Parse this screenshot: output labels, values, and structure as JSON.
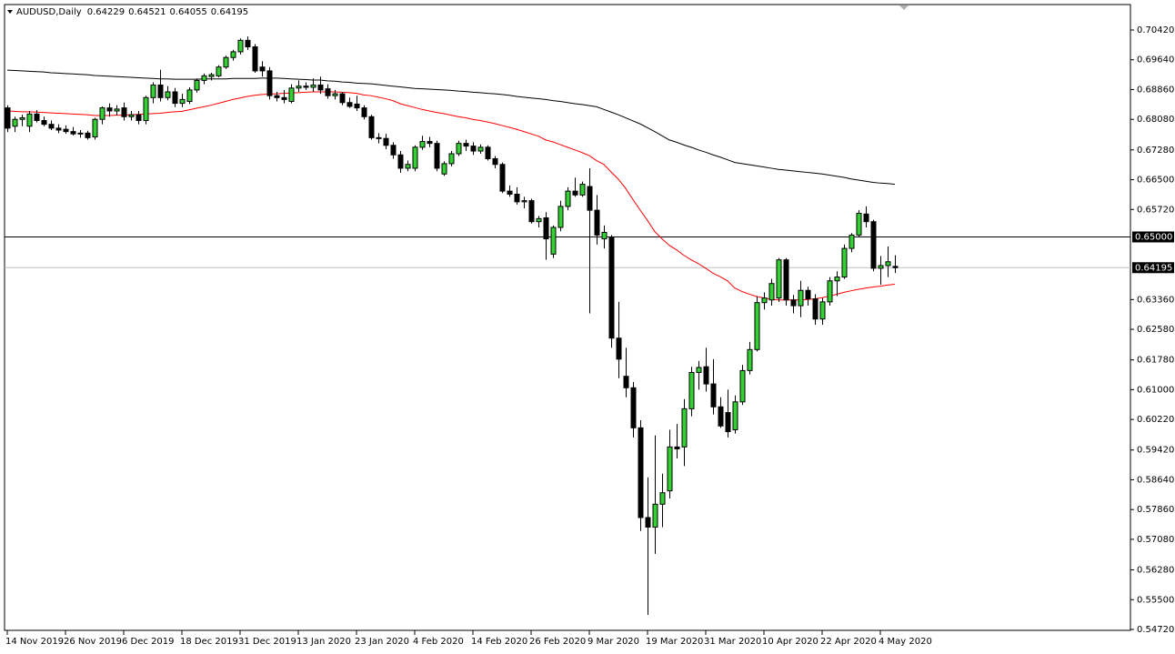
{
  "chart_data": {
    "type": "candlestick",
    "title": "AUDUSD,Daily",
    "categories": [
      "14 Nov 2019",
      null,
      null,
      null,
      null,
      null,
      null,
      null,
      "26 Nov 2019",
      null,
      null,
      null,
      null,
      null,
      null,
      null,
      "6 Dec 2019",
      null,
      null,
      null,
      null,
      null,
      null,
      null,
      "18 Dec 2019",
      null,
      null,
      null,
      null,
      null,
      null,
      null,
      "31 Dec 2019",
      null,
      null,
      null,
      null,
      null,
      null,
      null,
      "13 Jan 2020",
      null,
      null,
      null,
      null,
      null,
      null,
      null,
      "23 Jan 2020",
      null,
      null,
      null,
      null,
      null,
      null,
      null,
      "4 Feb 2020",
      null,
      null,
      null,
      null,
      null,
      null,
      null,
      "14 Feb 2020",
      null,
      null,
      null,
      null,
      null,
      null,
      null,
      "26 Feb 2020",
      null,
      null,
      null,
      null,
      null,
      null,
      null,
      "9 Mar 2020",
      null,
      null,
      null,
      null,
      null,
      null,
      null,
      "19 Mar 2020",
      null,
      null,
      null,
      null,
      null,
      null,
      null,
      "31 Mar 2020",
      null,
      null,
      null,
      null,
      null,
      null,
      null,
      "10 Apr 2020",
      null,
      null,
      null,
      null,
      null,
      null,
      null,
      "22 Apr 2020",
      null,
      null,
      null,
      null,
      null,
      null,
      null,
      "4 May 2020",
      null,
      null
    ],
    "open": [
      0.6838,
      0.679,
      0.6808,
      0.679,
      0.6822,
      0.6805,
      0.6795,
      0.6785,
      0.6782,
      0.6776,
      0.677,
      0.6772,
      0.6762,
      0.6808,
      0.6838,
      0.683,
      0.6838,
      0.6815,
      0.682,
      0.6805,
      0.6865,
      0.6898,
      0.6865,
      0.688,
      0.685,
      0.6855,
      0.6885,
      0.691,
      0.692,
      0.6922,
      0.6945,
      0.697,
      0.6985,
      0.7015,
      0.6998,
      0.6945,
      0.6935,
      0.687,
      0.6865,
      0.6855,
      0.689,
      0.6895,
      0.6892,
      0.6898,
      0.6888,
      0.687,
      0.6875,
      0.6852,
      0.6848,
      0.6838,
      0.6815,
      0.676,
      0.6758,
      0.674,
      0.6715,
      0.668,
      0.668,
      0.6735,
      0.675,
      0.6745,
      0.6665,
      0.6692,
      0.6718,
      0.6745,
      0.6738,
      0.6725,
      0.6735,
      0.6705,
      0.669,
      0.662,
      0.6612,
      0.6592,
      0.6595,
      0.654,
      0.655,
      0.6455,
      0.6525,
      0.658,
      0.662,
      0.661,
      0.6632,
      0.657,
      0.6495,
      0.65,
      0.6235,
      0.6135,
      0.6105,
      0.6,
      0.5765,
      0.574,
      0.58,
      0.5835,
      0.595,
      0.595,
      0.605,
      0.6145,
      0.616,
      0.6115,
      0.6055,
      0.604,
      0.5995,
      0.6068,
      0.615,
      0.6205,
      0.6328,
      0.6335,
      0.634,
      0.644,
      0.6335,
      0.632,
      0.636,
      0.6338,
      0.6285,
      0.633,
      0.6385,
      0.6395,
      0.647,
      0.6505,
      0.656,
      0.654,
      0.6418,
      0.6425,
      0.64229
    ],
    "high": [
      0.6845,
      0.6815,
      0.682,
      0.683,
      0.6832,
      0.6815,
      0.6805,
      0.6795,
      0.6792,
      0.6788,
      0.678,
      0.6778,
      0.6812,
      0.6842,
      0.685,
      0.6845,
      0.6852,
      0.683,
      0.683,
      0.687,
      0.6905,
      0.6938,
      0.6895,
      0.689,
      0.6875,
      0.6892,
      0.6915,
      0.6928,
      0.693,
      0.695,
      0.6975,
      0.699,
      0.702,
      0.7025,
      0.7005,
      0.696,
      0.6945,
      0.688,
      0.6885,
      0.69,
      0.691,
      0.6905,
      0.6915,
      0.692,
      0.69,
      0.6885,
      0.688,
      0.6865,
      0.687,
      0.6845,
      0.682,
      0.6772,
      0.677,
      0.6748,
      0.6725,
      0.67,
      0.674,
      0.6765,
      0.6762,
      0.6752,
      0.6698,
      0.6725,
      0.6752,
      0.6755,
      0.6748,
      0.6742,
      0.674,
      0.6712,
      0.6695,
      0.6635,
      0.663,
      0.6605,
      0.66,
      0.6555,
      0.6565,
      0.653,
      0.6595,
      0.663,
      0.6655,
      0.6645,
      0.668,
      0.661,
      0.653,
      0.6505,
      0.633,
      0.621,
      0.612,
      0.602,
      0.587,
      0.598,
      0.588,
      0.5995,
      0.601,
      0.6075,
      0.616,
      0.6175,
      0.621,
      0.618,
      0.608,
      0.61,
      0.6085,
      0.6165,
      0.6225,
      0.6345,
      0.6355,
      0.639,
      0.6445,
      0.6445,
      0.6348,
      0.6385,
      0.637,
      0.635,
      0.634,
      0.6395,
      0.641,
      0.648,
      0.651,
      0.657,
      0.658,
      0.6545,
      0.645,
      0.6475,
      0.64521
    ],
    "low": [
      0.6775,
      0.6775,
      0.679,
      0.6775,
      0.68,
      0.679,
      0.678,
      0.6772,
      0.677,
      0.6766,
      0.676,
      0.6755,
      0.6755,
      0.6795,
      0.6815,
      0.6818,
      0.6805,
      0.6805,
      0.6795,
      0.6795,
      0.685,
      0.6855,
      0.6858,
      0.684,
      0.684,
      0.6848,
      0.6878,
      0.69,
      0.691,
      0.6918,
      0.694,
      0.6962,
      0.6978,
      0.699,
      0.693,
      0.692,
      0.686,
      0.6855,
      0.685,
      0.685,
      0.688,
      0.6885,
      0.688,
      0.6875,
      0.6862,
      0.686,
      0.6845,
      0.6838,
      0.683,
      0.6808,
      0.6755,
      0.6745,
      0.673,
      0.6705,
      0.6668,
      0.6672,
      0.6672,
      0.6728,
      0.6735,
      0.6672,
      0.666,
      0.6685,
      0.6712,
      0.6725,
      0.6715,
      0.6718,
      0.67,
      0.668,
      0.6615,
      0.6605,
      0.6585,
      0.6575,
      0.6535,
      0.6525,
      0.644,
      0.6445,
      0.6515,
      0.657,
      0.6605,
      0.6605,
      0.63,
      0.648,
      0.647,
      0.621,
      0.613,
      0.608,
      0.5975,
      0.573,
      0.551,
      0.567,
      0.574,
      0.5815,
      0.592,
      0.59,
      0.603,
      0.61,
      0.6095,
      0.6035,
      0.6,
      0.5975,
      0.5985,
      0.606,
      0.614,
      0.62,
      0.631,
      0.632,
      0.633,
      0.632,
      0.63,
      0.629,
      0.632,
      0.627,
      0.627,
      0.632,
      0.6345,
      0.639,
      0.646,
      0.65,
      0.6525,
      0.641,
      0.6375,
      0.6395,
      0.64055
    ],
    "close": [
      0.6785,
      0.6808,
      0.6812,
      0.6822,
      0.6805,
      0.6795,
      0.6785,
      0.678,
      0.6776,
      0.677,
      0.6772,
      0.676,
      0.6808,
      0.6838,
      0.683,
      0.6835,
      0.6815,
      0.682,
      0.6805,
      0.6865,
      0.6898,
      0.6865,
      0.688,
      0.685,
      0.686,
      0.6885,
      0.691,
      0.6922,
      0.6925,
      0.6945,
      0.697,
      0.6985,
      0.7015,
      0.6998,
      0.6935,
      0.6935,
      0.687,
      0.6865,
      0.686,
      0.689,
      0.6895,
      0.6892,
      0.6898,
      0.6885,
      0.687,
      0.6875,
      0.6852,
      0.6842,
      0.6838,
      0.6815,
      0.676,
      0.6758,
      0.674,
      0.6715,
      0.668,
      0.669,
      0.6735,
      0.675,
      0.6745,
      0.668,
      0.6692,
      0.6718,
      0.6745,
      0.6738,
      0.6725,
      0.6735,
      0.6705,
      0.669,
      0.662,
      0.6612,
      0.6592,
      0.6595,
      0.654,
      0.6548,
      0.6495,
      0.6525,
      0.658,
      0.662,
      0.661,
      0.6638,
      0.657,
      0.6505,
      0.6512,
      0.6235,
      0.618,
      0.6105,
      0.6,
      0.5765,
      0.574,
      0.58,
      0.583,
      0.595,
      0.5945,
      0.605,
      0.6145,
      0.6158,
      0.6115,
      0.6055,
      0.6005,
      0.599,
      0.6068,
      0.615,
      0.6205,
      0.6328,
      0.634,
      0.6378,
      0.644,
      0.6335,
      0.632,
      0.636,
      0.6338,
      0.6285,
      0.633,
      0.6385,
      0.6395,
      0.647,
      0.6505,
      0.6562,
      0.654,
      0.6418,
      0.6425,
      0.6435,
      0.64195
    ],
    "up_color": "#32d232",
    "down_color": "#000000",
    "lines": [
      {
        "color": "#000000",
        "values": [
          0.6937,
          0.6936,
          0.6935,
          0.6934,
          0.6933,
          0.6932,
          0.693,
          0.6929,
          0.6928,
          0.6927,
          0.6926,
          0.6925,
          0.6923,
          0.6922,
          0.6921,
          0.692,
          0.6919,
          0.6918,
          0.6917,
          0.6916,
          0.6915,
          0.6914,
          0.6914,
          0.6913,
          0.6913,
          0.6913,
          0.6913,
          0.6914,
          0.6914,
          0.6914,
          0.6914,
          0.6915,
          0.6915,
          0.6915,
          0.6915,
          0.6916,
          0.6916,
          0.6916,
          0.6915,
          0.6914,
          0.6913,
          0.6912,
          0.6911,
          0.6911,
          0.6909,
          0.6908,
          0.6906,
          0.6905,
          0.6903,
          0.6902,
          0.6901,
          0.6899,
          0.6897,
          0.6895,
          0.6893,
          0.6891,
          0.6889,
          0.6888,
          0.6887,
          0.6886,
          0.6885,
          0.6884,
          0.6882,
          0.6881,
          0.6879,
          0.6878,
          0.6876,
          0.6875,
          0.6873,
          0.6871,
          0.6868,
          0.6866,
          0.6864,
          0.6862,
          0.686,
          0.6857,
          0.6855,
          0.6852,
          0.6849,
          0.6847,
          0.6844,
          0.6841,
          0.6834,
          0.6827,
          0.682,
          0.6812,
          0.6804,
          0.6796,
          0.6786,
          0.6776,
          0.6765,
          0.6754,
          0.6748,
          0.6741,
          0.6735,
          0.6728,
          0.6722,
          0.6715,
          0.6709,
          0.6702,
          0.6695,
          0.6692,
          0.6689,
          0.6686,
          0.6683,
          0.668,
          0.6677,
          0.6675,
          0.6673,
          0.6671,
          0.6669,
          0.6667,
          0.6665,
          0.6662,
          0.6659,
          0.6656,
          0.6652,
          0.6649,
          0.6646,
          0.6643,
          0.6641,
          0.664,
          0.6638
        ]
      },
      {
        "color": "#ff0000",
        "values": [
          0.683,
          0.6829,
          0.6828,
          0.6828,
          0.6827,
          0.6826,
          0.6825,
          0.6824,
          0.6823,
          0.6822,
          0.6821,
          0.682,
          0.6818,
          0.6818,
          0.6818,
          0.6819,
          0.6819,
          0.682,
          0.6821,
          0.6822,
          0.6823,
          0.6824,
          0.6826,
          0.6828,
          0.6829,
          0.6833,
          0.6837,
          0.6841,
          0.6845,
          0.685,
          0.6855,
          0.686,
          0.6864,
          0.6868,
          0.6871,
          0.6873,
          0.6874,
          0.6875,
          0.6876,
          0.6877,
          0.6878,
          0.6879,
          0.688,
          0.688,
          0.688,
          0.688,
          0.6879,
          0.6878,
          0.6876,
          0.6872,
          0.687,
          0.6866,
          0.6862,
          0.6857,
          0.6849,
          0.6844,
          0.6839,
          0.6834,
          0.683,
          0.6826,
          0.6823,
          0.6819,
          0.6815,
          0.6812,
          0.6808,
          0.6805,
          0.6801,
          0.6797,
          0.6792,
          0.6787,
          0.6782,
          0.6776,
          0.677,
          0.6764,
          0.6754,
          0.6749,
          0.6742,
          0.6735,
          0.6728,
          0.6721,
          0.6713,
          0.67,
          0.669,
          0.667,
          0.6651,
          0.6627,
          0.6598,
          0.657,
          0.6543,
          0.6514,
          0.6495,
          0.6478,
          0.6466,
          0.6452,
          0.644,
          0.643,
          0.6418,
          0.6405,
          0.6396,
          0.6385,
          0.6366,
          0.6357,
          0.635,
          0.6344,
          0.634,
          0.6337,
          0.6335,
          0.6335,
          0.6335,
          0.6335,
          0.6336,
          0.6338,
          0.6341,
          0.6345,
          0.635,
          0.6355,
          0.6359,
          0.6363,
          0.6366,
          0.6369,
          0.6371,
          0.6374,
          0.6376
        ]
      }
    ],
    "levels": [
      {
        "value": 0.65,
        "label": "0.65000",
        "color": "#000000"
      },
      {
        "value": 0.64195,
        "label": "0.64195",
        "color": "#c0c0c0"
      }
    ],
    "ylim": [
      0.54696,
      0.71087
    ],
    "yticks": [
      {
        "value": 0.7042,
        "label": "0.70420"
      },
      {
        "value": 0.6964,
        "label": "0.69640"
      },
      {
        "value": 0.6886,
        "label": "0.68860"
      },
      {
        "value": 0.6808,
        "label": "0.68080"
      },
      {
        "value": 0.6728,
        "label": "0.67280"
      },
      {
        "value": 0.665,
        "label": "0.66500"
      },
      {
        "value": 0.6572,
        "label": "0.65720"
      },
      {
        "value": 0.6336,
        "label": "0.63360"
      },
      {
        "value": 0.6258,
        "label": "0.62580"
      },
      {
        "value": 0.6178,
        "label": "0.61780"
      },
      {
        "value": 0.61,
        "label": "0.61000"
      },
      {
        "value": 0.6022,
        "label": "0.60220"
      },
      {
        "value": 0.5942,
        "label": "0.59420"
      },
      {
        "value": 0.5864,
        "label": "0.58640"
      },
      {
        "value": 0.5786,
        "label": "0.57860"
      },
      {
        "value": 0.5708,
        "label": "0.57080"
      },
      {
        "value": 0.5628,
        "label": "0.56280"
      },
      {
        "value": 0.555,
        "label": "0.55500"
      },
      {
        "value": 0.5472,
        "label": "0.54720"
      }
    ]
  }
}
